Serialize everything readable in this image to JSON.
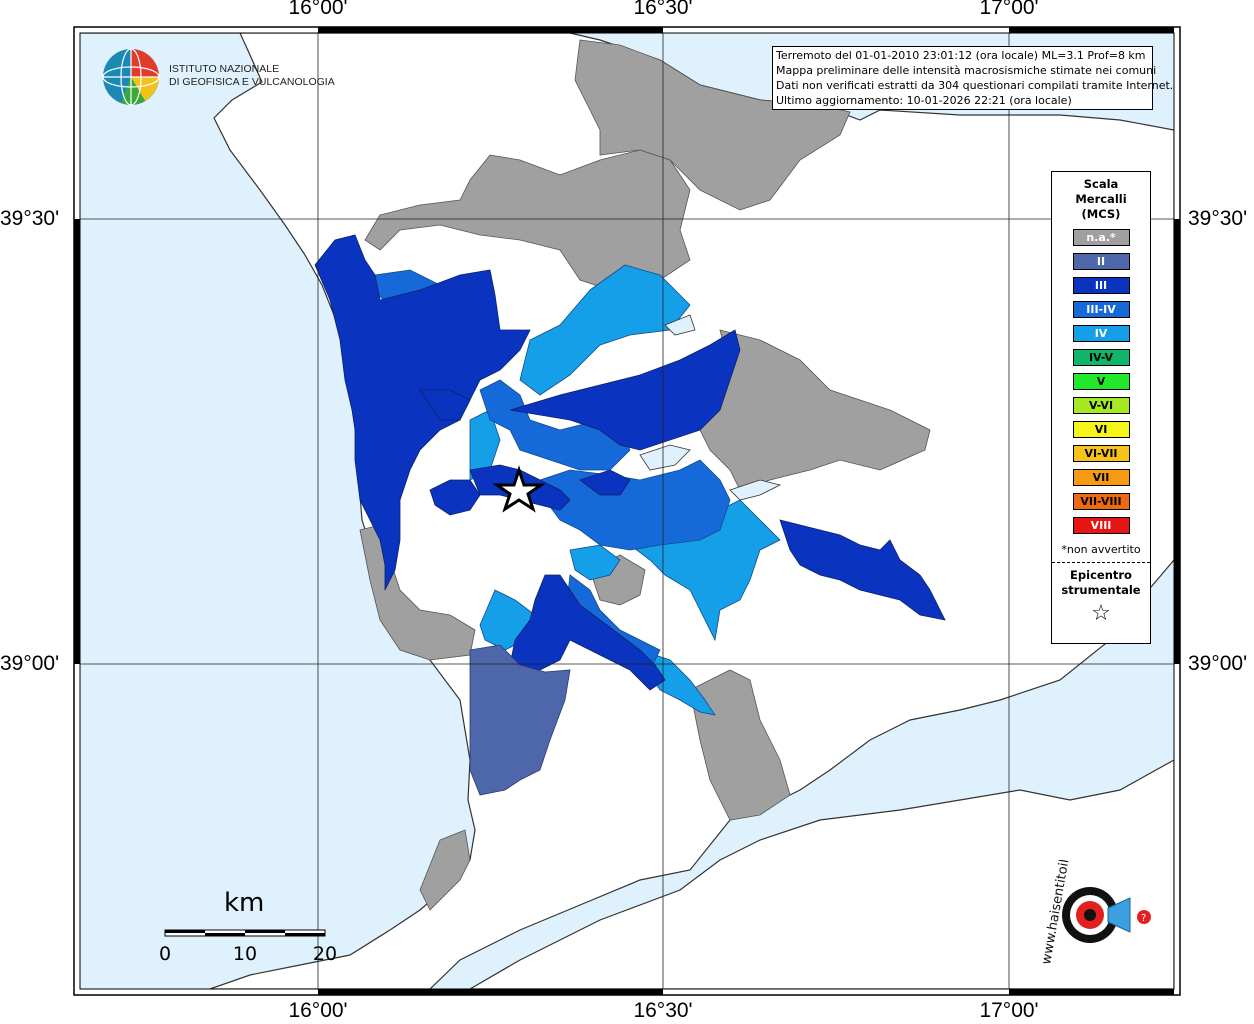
{
  "coordinates": {
    "longitude_labels": [
      "16°00'",
      "16°30'",
      "17°00'"
    ],
    "latitude_labels": [
      "39°30'",
      "39°00'"
    ]
  },
  "logo": {
    "line1": "ISTITUTO NAZIONALE",
    "line2": "DI GEOFISICA E VULCANOLOGIA"
  },
  "info_box": {
    "line1": "Terremoto del 01-01-2010 23:01:12 (ora locale) ML=3.1 Prof=8 km",
    "line2": "Mappa preliminare delle intensità macrosismiche stimate nei comuni",
    "line3": "Dati non verificati estratti da 304 questionari compilati tramite Internet.",
    "line4": "Ultimo aggiornamento: 10-01-2026 22:21 (ora locale)"
  },
  "legend": {
    "title_line1": "Scala",
    "title_line2": "Mercalli",
    "title_line3": "(MCS)",
    "classes": [
      {
        "label": "n.a.*",
        "color": "#a0a0a0",
        "text_color": "#ffffff"
      },
      {
        "label": "II",
        "color": "#4e66aa",
        "text_color": "#ffffff"
      },
      {
        "label": "III",
        "color": "#0a33c0",
        "text_color": "#ffffff"
      },
      {
        "label": "III-IV",
        "color": "#1669d8",
        "text_color": "#ffffff"
      },
      {
        "label": "IV",
        "color": "#149fe8",
        "text_color": "#ffffff"
      },
      {
        "label": "IV-V",
        "color": "#0fb66a",
        "text_color": "#000000"
      },
      {
        "label": "V",
        "color": "#22e82a",
        "text_color": "#000000"
      },
      {
        "label": "V-VI",
        "color": "#a6e822",
        "text_color": "#000000"
      },
      {
        "label": "VI",
        "color": "#f5f51a",
        "text_color": "#000000"
      },
      {
        "label": "VI-VII",
        "color": "#f5c31a",
        "text_color": "#000000"
      },
      {
        "label": "VII",
        "color": "#f59a12",
        "text_color": "#000000"
      },
      {
        "label": "VII-VIII",
        "color": "#ee6a12",
        "text_color": "#000000"
      },
      {
        "label": "VIII",
        "color": "#e81414",
        "text_color": "#ffffff"
      }
    ],
    "not_felt_note": "*non avvertito",
    "epicenter_line1": "Epicentro",
    "epicenter_line2": "strumentale",
    "epicenter_symbol": "☆"
  },
  "scale_bar": {
    "unit": "km",
    "labels": [
      "0",
      "10",
      "20"
    ]
  },
  "watermark": {
    "text": "www.haisentitoilterremoto.it"
  },
  "colors": {
    "sea": "#dff1fc",
    "land": "#ffffff",
    "not_available": "#a0a0a0",
    "II": "#4e66aa",
    "III": "#0a33c0",
    "III_IV": "#1669d8",
    "IV": "#149fe8"
  }
}
